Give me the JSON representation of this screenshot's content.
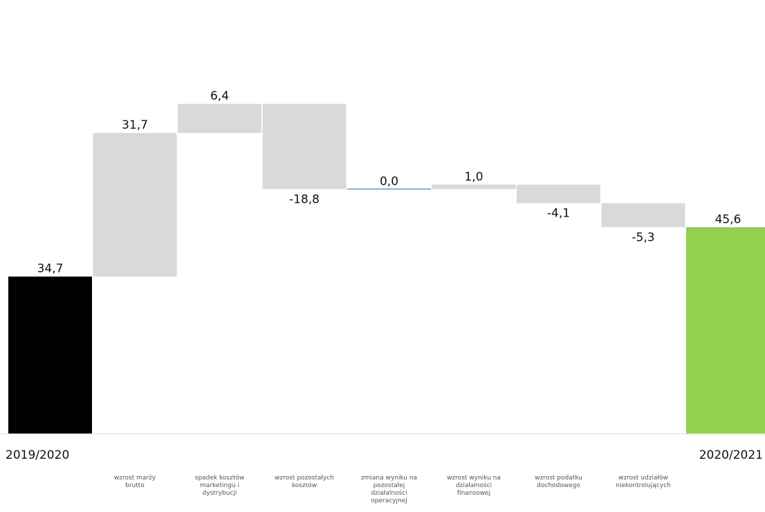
{
  "chart_data": {
    "type": "waterfall",
    "title_fragment": "(…)",
    "categories": [
      "2019/2020",
      "wzrost marży brutto",
      "spadek kosztów marketingu i dystrybucji",
      "wzrost pozostałych kosztów",
      "zmiana wyniku na pozostałej działalności operacyjnej",
      "wzrost wyniku na działalności finansowej",
      "wzrost podatku dochodowego",
      "wzrost udziałów niekontrolujących",
      "2020/2021"
    ],
    "category_lines": [
      [
        "2019/2020"
      ],
      [
        "wzrost marży",
        "brutto"
      ],
      [
        "spadek kosztów",
        "marketingu i",
        "dystrybucji"
      ],
      [
        "wzrost pozostałych",
        "kosztów"
      ],
      [
        "zmiana wyniku na",
        "pozostałej",
        "działalności",
        "operacyjnej"
      ],
      [
        "wzrost wyniku na",
        "działalności",
        "finansowej"
      ],
      [
        "wzrost podatku",
        "dochodowego"
      ],
      [
        "wzrost udziałów",
        "niekontrolujących"
      ],
      [
        "2020/2021"
      ]
    ],
    "values": [
      34.7,
      31.7,
      6.4,
      -18.8,
      0.0,
      1.0,
      -4.1,
      -5.3,
      45.6
    ],
    "value_labels": [
      "34,7",
      "31,7",
      "6,4",
      "-18,8",
      "0,0",
      "1,0",
      "-4,1",
      "-5,3",
      "45,6"
    ],
    "bar_kinds": [
      "total",
      "delta",
      "delta",
      "delta",
      "delta",
      "delta",
      "delta",
      "delta",
      "total"
    ],
    "colors": {
      "start_total": "#000000",
      "end_total": "#92d050",
      "delta": "#d9d9d9",
      "zero_line": "#5b9bd5",
      "axis": "#d9d9d9"
    },
    "ylim": [
      0,
      80
    ],
    "grid": false,
    "legend": "none"
  }
}
